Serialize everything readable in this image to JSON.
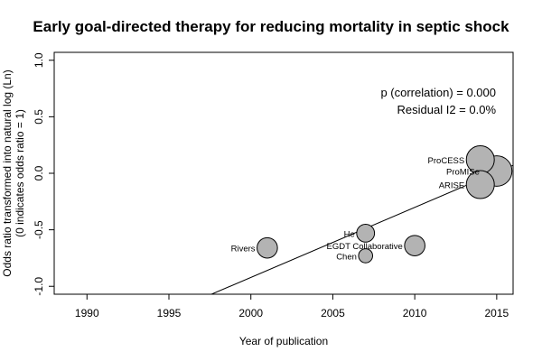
{
  "chart_data": {
    "type": "scatter",
    "title": "Early goal-directed therapy for reducing mortality in septic shock",
    "xlabel": "Year of publication",
    "ylabel": [
      "Odds ratio transformed into natural log (Ln)",
      "(0 indicates odds ratio = 1)"
    ],
    "xlim": [
      1988,
      2016
    ],
    "ylim": [
      -1.07,
      1.07
    ],
    "xticks": [
      "1990",
      "1995",
      "2000",
      "2005",
      "2010",
      "2015"
    ],
    "yticks": [
      "-1.0",
      "-0.5",
      "0.0",
      "0.5",
      "1.0"
    ],
    "grid": false,
    "points": [
      {
        "label": "Rivers",
        "x": 2001,
        "y": -0.66,
        "weight": 0.45
      },
      {
        "label": "He",
        "x": 2007,
        "y": -0.53,
        "weight": 0.35
      },
      {
        "label": "EGDT Collaborative",
        "x": 2010,
        "y": -0.64,
        "weight": 0.45
      },
      {
        "label": "Chen",
        "x": 2007,
        "y": -0.73,
        "weight": 0.2
      },
      {
        "label": "ProCESS",
        "x": 2014,
        "y": 0.12,
        "weight": 0.75
      },
      {
        "label": "ProMISe",
        "x": 2015,
        "y": 0.02,
        "weight": 0.85
      },
      {
        "label": "ARISE",
        "x": 2014,
        "y": -0.1,
        "weight": 0.75
      }
    ],
    "regression": {
      "x": [
        1997.6,
        2016
      ],
      "y": [
        -1.07,
        0.07
      ]
    },
    "annotations": [
      "p (correlation) = 0.000",
      "Residual I2 = 0.0%"
    ],
    "colors": {
      "point_fill": "#b3b3b3",
      "point_stroke": "#000000",
      "line": "#000000"
    }
  }
}
